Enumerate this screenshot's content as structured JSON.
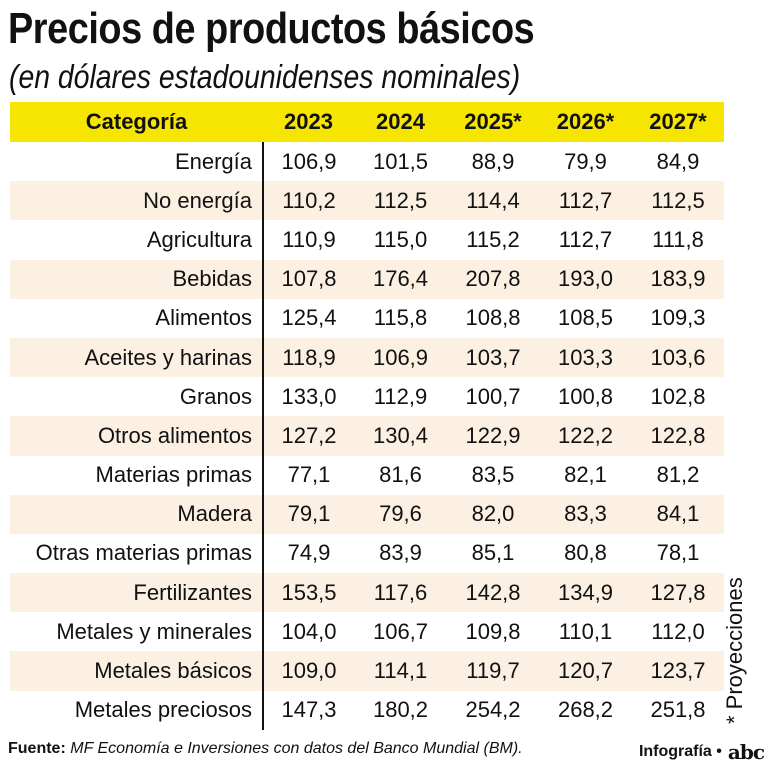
{
  "title": "Precios de productos básicos",
  "subtitle": "(en dólares estadounidenses nominales)",
  "chart_data": {
    "type": "table",
    "columns": [
      "Categoría",
      "2023",
      "2024",
      "2025*",
      "2026*",
      "2027*"
    ],
    "rows": [
      [
        "Energía",
        "106,9",
        "101,5",
        "88,9",
        "79,9",
        "84,9"
      ],
      [
        "No energía",
        "110,2",
        "112,5",
        "114,4",
        "112,7",
        "112,5"
      ],
      [
        "Agricultura",
        "110,9",
        "115,0",
        "115,2",
        "112,7",
        "111,8"
      ],
      [
        "Bebidas",
        "107,8",
        "176,4",
        "207,8",
        "193,0",
        "183,9"
      ],
      [
        "Alimentos",
        "125,4",
        "115,8",
        "108,8",
        "108,5",
        "109,3"
      ],
      [
        "Aceites y harinas",
        "118,9",
        "106,9",
        "103,7",
        "103,3",
        "103,6"
      ],
      [
        "Granos",
        "133,0",
        "112,9",
        "100,7",
        "100,8",
        "102,8"
      ],
      [
        "Otros alimentos",
        "127,2",
        "130,4",
        "122,9",
        "122,2",
        "122,8"
      ],
      [
        "Materias primas",
        "77,1",
        "81,6",
        "83,5",
        "82,1",
        "81,2"
      ],
      [
        "Madera",
        "79,1",
        "79,6",
        "82,0",
        "83,3",
        "84,1"
      ],
      [
        "Otras materias primas",
        "74,9",
        "83,9",
        "85,1",
        "80,8",
        "78,1"
      ],
      [
        "Fertilizantes",
        "153,5",
        "117,6",
        "142,8",
        "134,9",
        "127,8"
      ],
      [
        "Metales y minerales",
        "104,0",
        "106,7",
        "109,8",
        "110,1",
        "112,0"
      ],
      [
        "Metales básicos",
        "109,0",
        "114,1",
        "119,7",
        "120,7",
        "123,7"
      ],
      [
        "Metales preciosos",
        "147,3",
        "180,2",
        "254,2",
        "268,2",
        "251,8"
      ]
    ],
    "note": "* Proyecciones"
  },
  "footer": {
    "source_label": "Fuente:",
    "source_text": "MF Economía e Inversiones con datos del Banco Mundial (BM).",
    "credit": "Infografía •",
    "logo": "abc"
  },
  "colors": {
    "header_bg": "#f5e500",
    "row_alt_bg": "#fbf0e2"
  }
}
